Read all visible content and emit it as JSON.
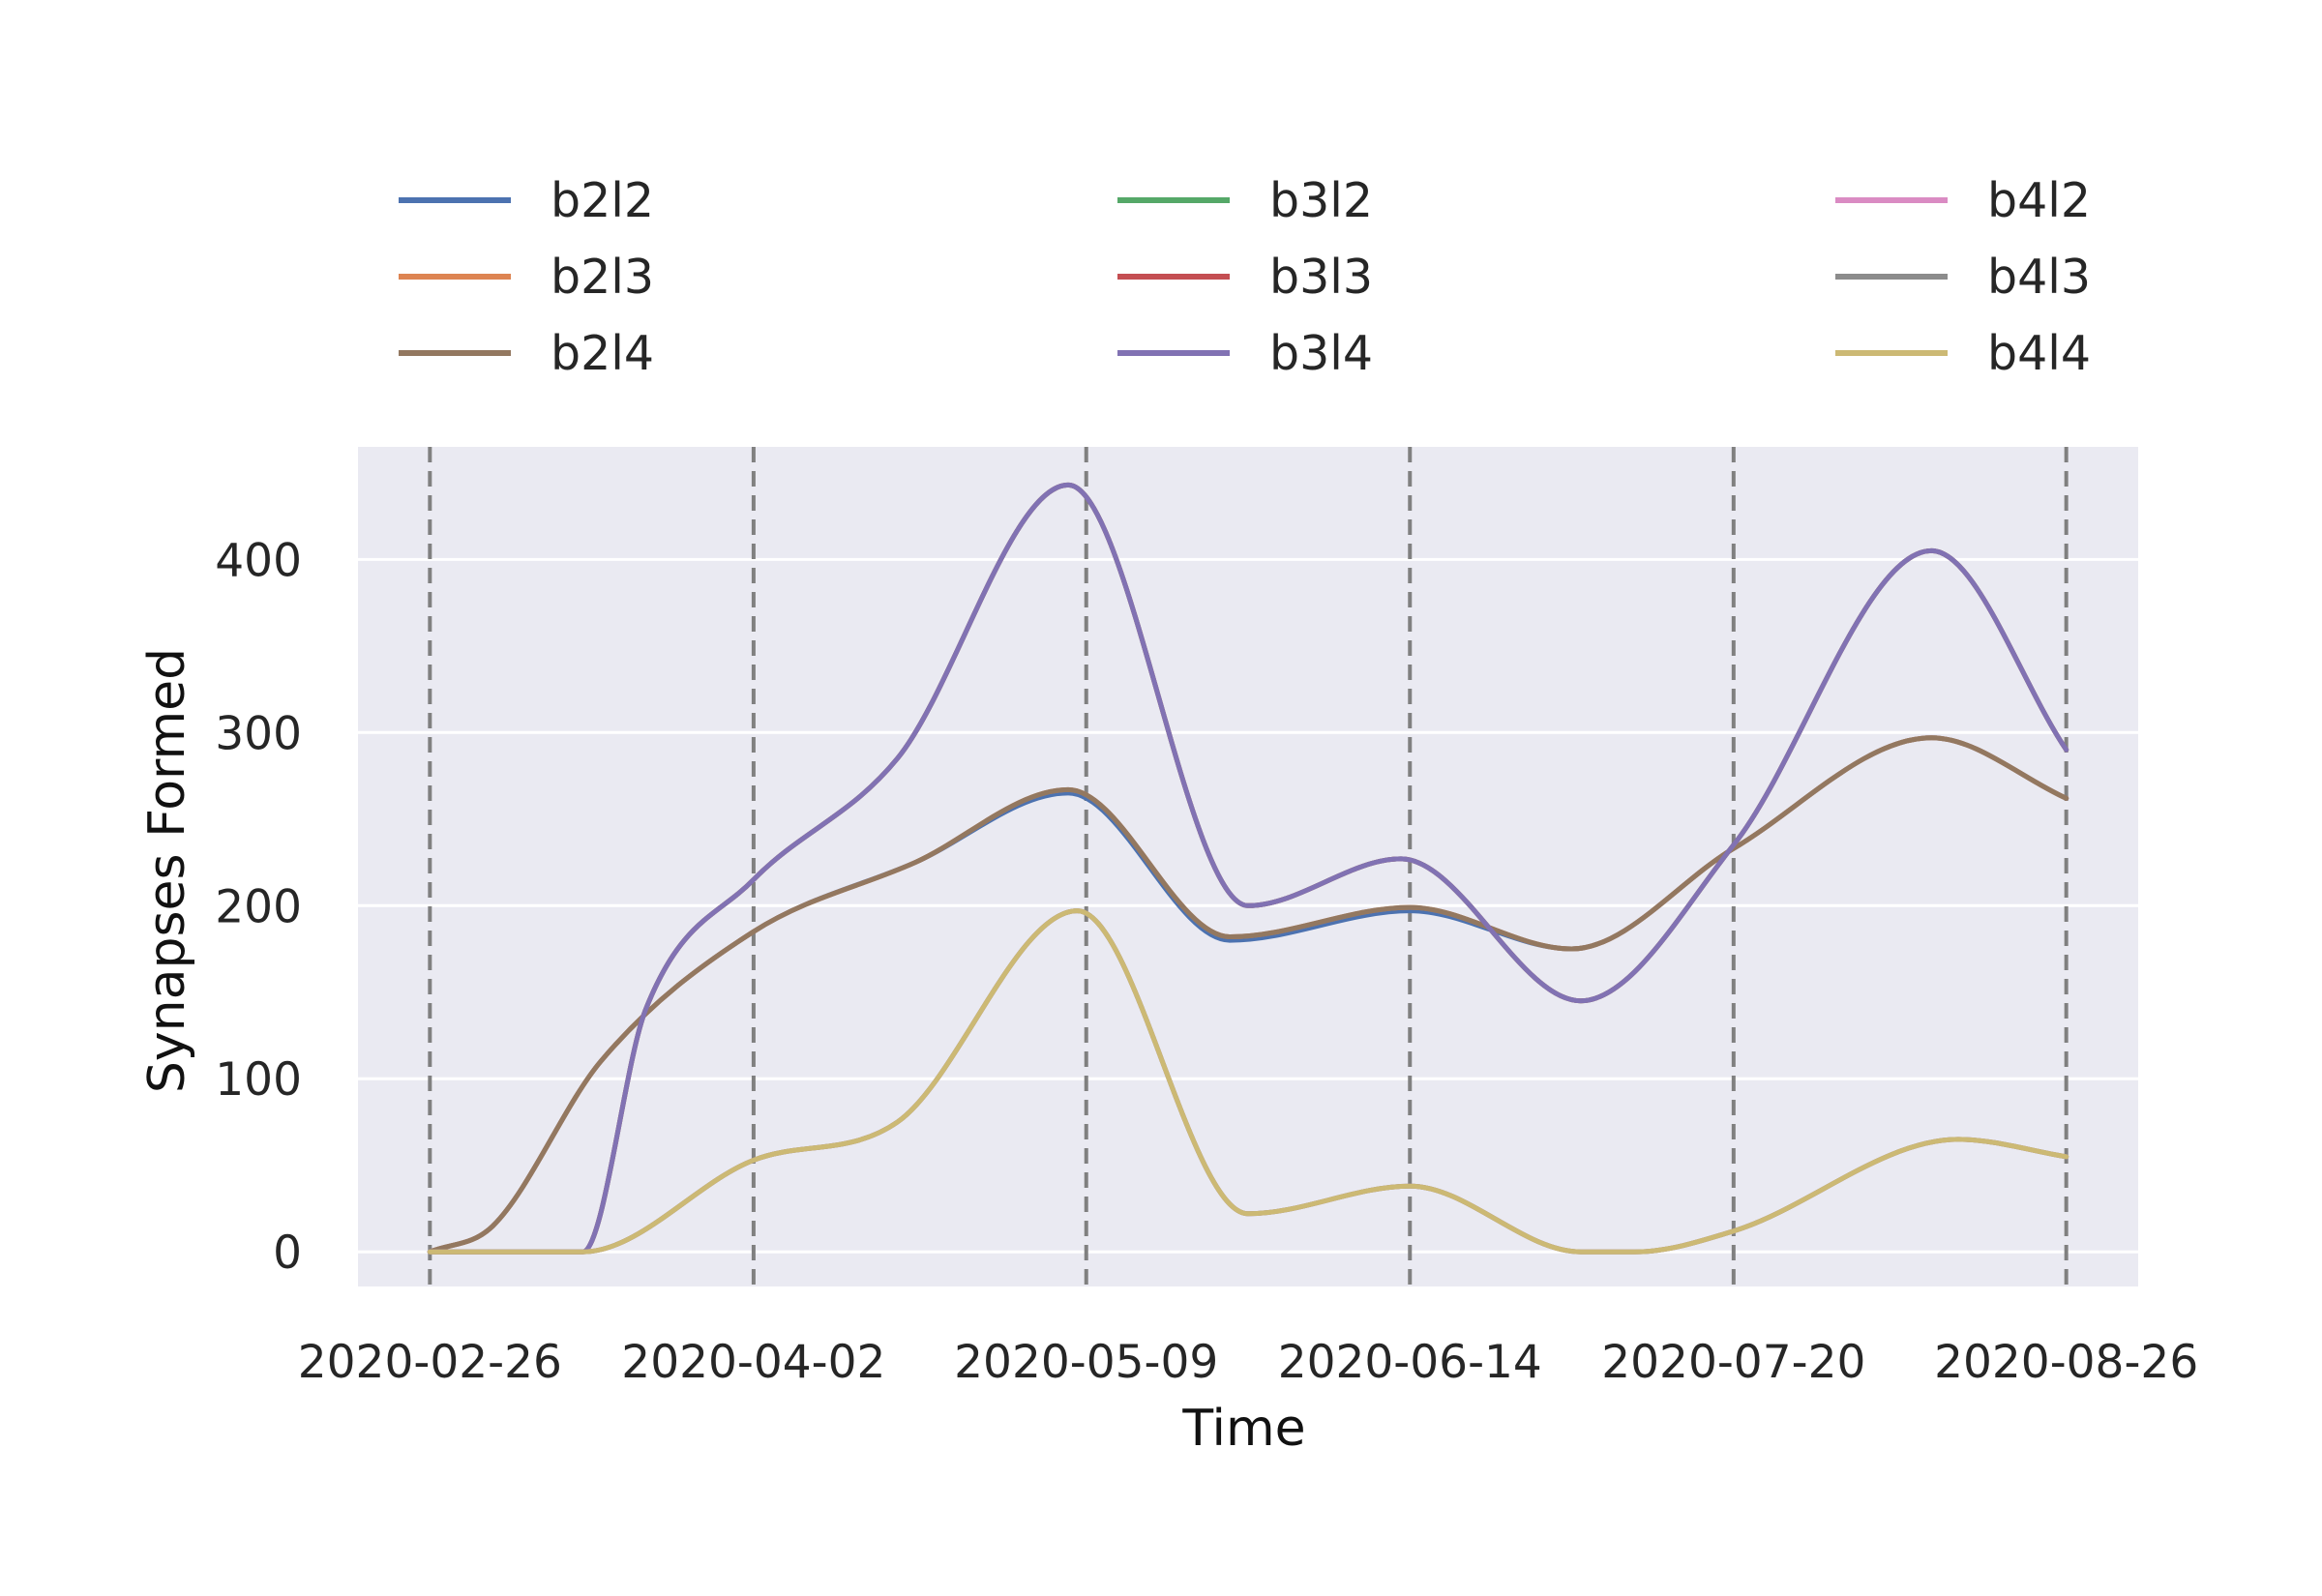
{
  "chart_data": {
    "type": "line",
    "title": "",
    "xlabel": "Time",
    "ylabel": "Synapses Formed",
    "x_axis": "date",
    "xlim": [
      "2020-02-18",
      "2020-09-03"
    ],
    "ylim": [
      -20,
      465
    ],
    "x_ticks": [
      "2020-02-26",
      "2020-04-02",
      "2020-05-09",
      "2020-06-14",
      "2020-07-20",
      "2020-08-26"
    ],
    "y_ticks": [
      0,
      100,
      200,
      300,
      400
    ],
    "vertical_dashed_lines": [
      "2020-02-26",
      "2020-04-02",
      "2020-05-09",
      "2020-06-14",
      "2020-07-20",
      "2020-08-26"
    ],
    "grid": true,
    "legend_position": "above plot, 3 columns",
    "series": [
      {
        "name": "b2l2",
        "color": "#4c72b0",
        "x": [
          "2020-02-26",
          "2020-03-04",
          "2020-03-16",
          "2020-04-02",
          "2020-04-20",
          "2020-05-07",
          "2020-05-25",
          "2020-06-14",
          "2020-07-02",
          "2020-07-20",
          "2020-08-11",
          "2020-08-26"
        ],
        "y": [
          0,
          15,
          110,
          185,
          225,
          265,
          180,
          197,
          175,
          233,
          297,
          262
        ]
      },
      {
        "name": "b2l3",
        "color": "#dd8452",
        "x": [
          "2020-02-26",
          "2020-03-04",
          "2020-03-16",
          "2020-04-02",
          "2020-04-20",
          "2020-05-07",
          "2020-05-25",
          "2020-06-14",
          "2020-07-02",
          "2020-07-20",
          "2020-08-11",
          "2020-08-26"
        ],
        "y": [
          0,
          15,
          110,
          185,
          225,
          267,
          182,
          199,
          175,
          233,
          297,
          262
        ]
      },
      {
        "name": "b2l4",
        "color": "#937860",
        "x": [
          "2020-02-26",
          "2020-03-04",
          "2020-03-16",
          "2020-04-02",
          "2020-04-20",
          "2020-05-07",
          "2020-05-25",
          "2020-06-14",
          "2020-07-02",
          "2020-07-20",
          "2020-08-11",
          "2020-08-26"
        ],
        "y": [
          0,
          15,
          110,
          185,
          225,
          267,
          182,
          199,
          175,
          233,
          297,
          262
        ]
      },
      {
        "name": "b3l2",
        "color": "#55a868",
        "x": [
          "2020-02-26",
          "2020-03-14",
          "2020-03-21",
          "2020-04-02",
          "2020-04-18",
          "2020-05-07",
          "2020-05-27",
          "2020-06-13",
          "2020-07-03",
          "2020-07-20",
          "2020-08-11",
          "2020-08-26"
        ],
        "y": [
          0,
          0,
          140,
          215,
          285,
          443,
          200,
          227,
          145,
          235,
          405,
          290
        ]
      },
      {
        "name": "b3l3",
        "color": "#c44e52",
        "x": [
          "2020-02-26",
          "2020-03-14",
          "2020-03-21",
          "2020-04-02",
          "2020-04-18",
          "2020-05-07",
          "2020-05-27",
          "2020-06-13",
          "2020-07-03",
          "2020-07-20",
          "2020-08-11",
          "2020-08-26"
        ],
        "y": [
          0,
          0,
          140,
          215,
          285,
          443,
          200,
          227,
          145,
          235,
          405,
          290
        ]
      },
      {
        "name": "b3l4",
        "color": "#8172b3",
        "x": [
          "2020-02-26",
          "2020-03-14",
          "2020-03-21",
          "2020-04-02",
          "2020-04-18",
          "2020-05-07",
          "2020-05-27",
          "2020-06-13",
          "2020-07-03",
          "2020-07-20",
          "2020-08-11",
          "2020-08-26"
        ],
        "y": [
          0,
          0,
          140,
          215,
          285,
          443,
          200,
          227,
          145,
          235,
          405,
          290
        ]
      },
      {
        "name": "b4l2",
        "color": "#da8bc3",
        "x": [
          "2020-02-26",
          "2020-03-14",
          "2020-04-02",
          "2020-04-18",
          "2020-05-08",
          "2020-05-27",
          "2020-06-14",
          "2020-07-03",
          "2020-07-09",
          "2020-07-20",
          "2020-08-14",
          "2020-08-26"
        ],
        "y": [
          0,
          0,
          53,
          75,
          197,
          22,
          38,
          0,
          0,
          12,
          65,
          55
        ]
      },
      {
        "name": "b4l3",
        "color": "#8c8c8c",
        "x": [
          "2020-02-26",
          "2020-03-14",
          "2020-04-02",
          "2020-04-18",
          "2020-05-08",
          "2020-05-27",
          "2020-06-14",
          "2020-07-03",
          "2020-07-09",
          "2020-07-20",
          "2020-08-14",
          "2020-08-26"
        ],
        "y": [
          0,
          0,
          53,
          75,
          197,
          22,
          38,
          0,
          0,
          12,
          65,
          55
        ]
      },
      {
        "name": "b4l4",
        "color": "#ccb974",
        "x": [
          "2020-02-26",
          "2020-03-14",
          "2020-04-02",
          "2020-04-18",
          "2020-05-08",
          "2020-05-27",
          "2020-06-14",
          "2020-07-03",
          "2020-07-09",
          "2020-07-20",
          "2020-08-14",
          "2020-08-26"
        ],
        "y": [
          0,
          0,
          53,
          75,
          197,
          22,
          38,
          0,
          0,
          12,
          65,
          55
        ]
      }
    ]
  },
  "style": {
    "background": "#eaeaf2",
    "grid_color": "#ffffff",
    "dashed_line_color": "#808080"
  }
}
